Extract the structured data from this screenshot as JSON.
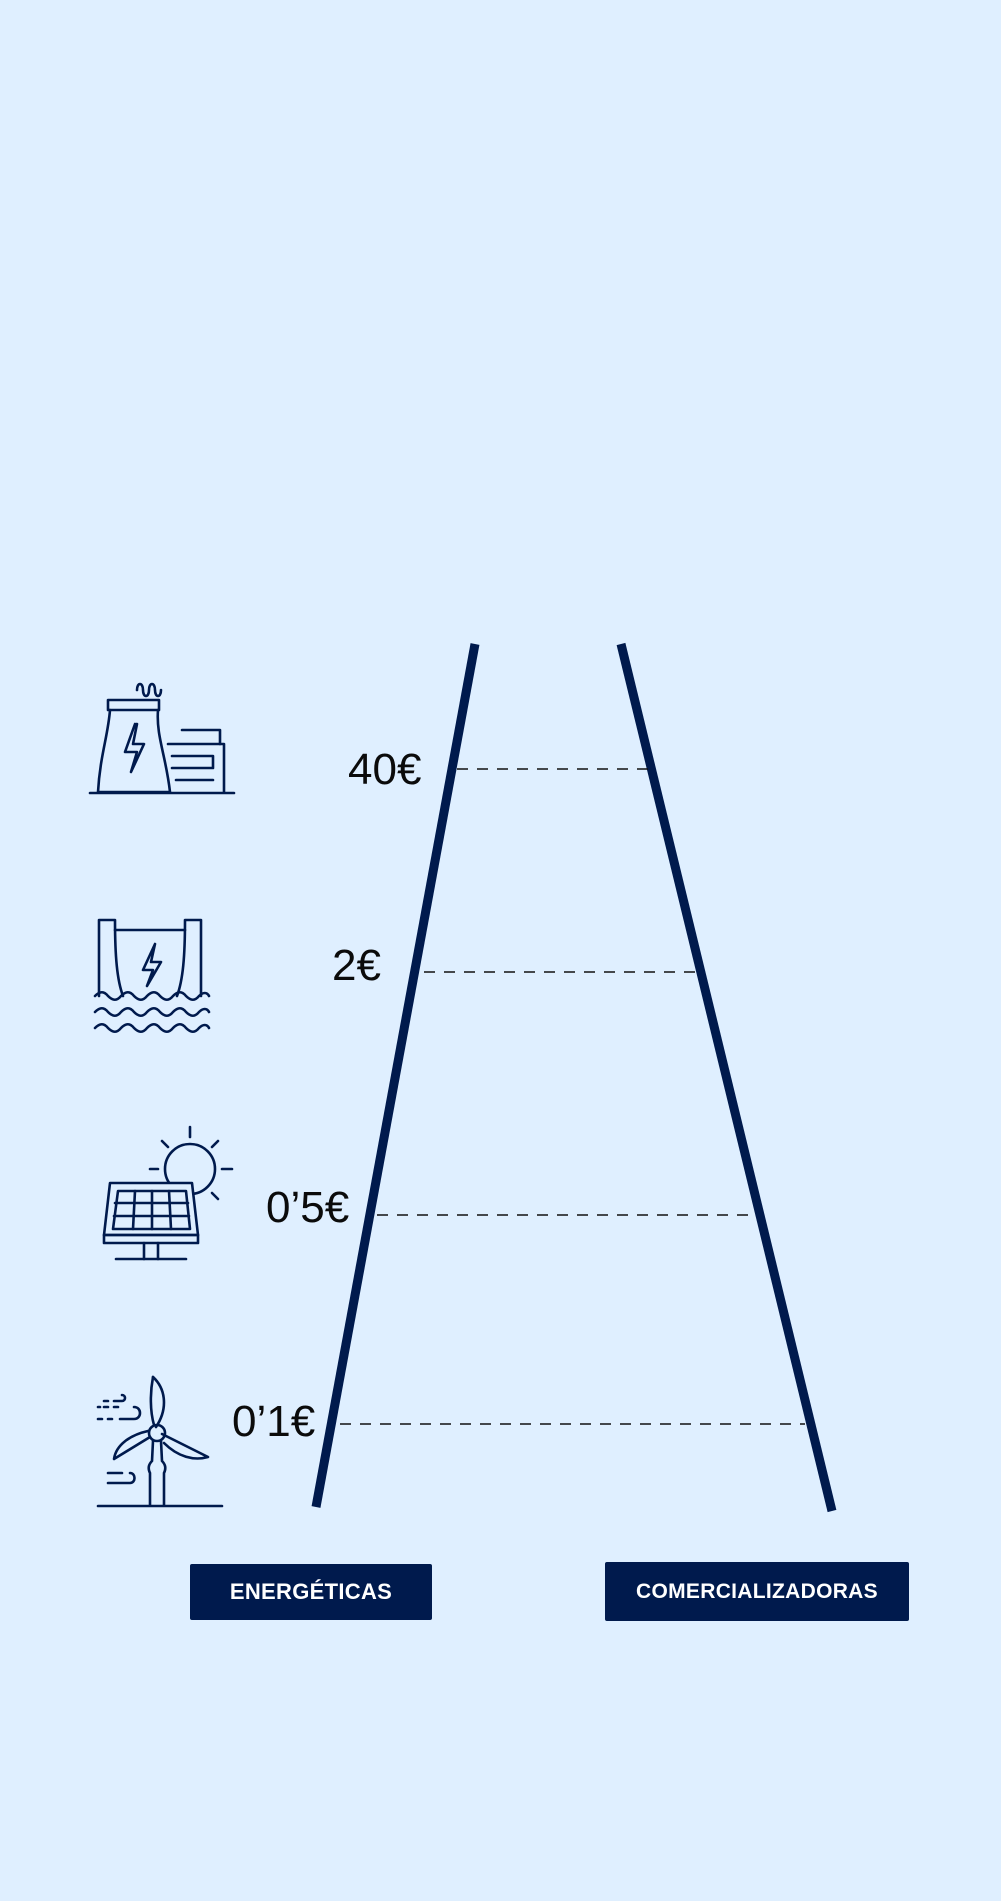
{
  "prices": [
    "40€",
    "2€",
    "0’5€",
    "0’1€"
  ],
  "buttons": {
    "left": "ENERGÉTICAS",
    "right": "COMERCIALIZADORAS"
  },
  "icons": [
    "power-plant-icon",
    "hydro-dam-icon",
    "solar-panel-icon",
    "wind-turbine-icon"
  ],
  "colors": {
    "background": "#dfefff",
    "accent": "#001a4d",
    "text": "#0b0b0b"
  }
}
